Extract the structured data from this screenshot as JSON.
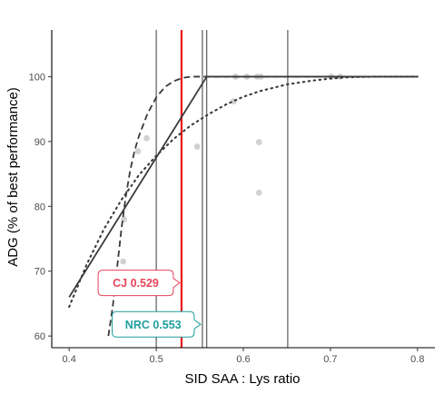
{
  "chart_data": {
    "type": "scatter",
    "xlabel": "SID SAA : Lys ratio",
    "ylabel": "ADG (% of best performance)",
    "xlim": [
      0.38,
      0.82
    ],
    "ylim": [
      58.2,
      107.2
    ],
    "x_ticks": [
      0.4,
      0.5,
      0.6,
      0.7,
      0.8
    ],
    "y_ticks": [
      60,
      70,
      80,
      90,
      100
    ],
    "grid": false,
    "points": [
      {
        "x": 0.462,
        "y": 71.5
      },
      {
        "x": 0.463,
        "y": 78
      },
      {
        "x": 0.479,
        "y": 88.5
      },
      {
        "x": 0.489,
        "y": 90.5
      },
      {
        "x": 0.547,
        "y": 89.2
      },
      {
        "x": 0.589,
        "y": 96.2
      },
      {
        "x": 0.591,
        "y": 100
      },
      {
        "x": 0.604,
        "y": 100
      },
      {
        "x": 0.616,
        "y": 100
      },
      {
        "x": 0.62,
        "y": 100
      },
      {
        "x": 0.618,
        "y": 89.9
      },
      {
        "x": 0.618,
        "y": 82.1
      },
      {
        "x": 0.701,
        "y": 100
      },
      {
        "x": 0.711,
        "y": 100
      }
    ],
    "models": [
      {
        "style": "solid",
        "color": "#3a3a3a",
        "x": [
          0.4,
          0.558,
          0.8
        ],
        "y": [
          66,
          100,
          100
        ]
      },
      {
        "style": "dashed",
        "color": "#3a3a3a",
        "x": [
          0.445,
          0.45,
          0.455,
          0.46,
          0.465,
          0.47,
          0.475,
          0.48,
          0.49,
          0.5,
          0.51,
          0.52,
          0.53,
          0.54,
          0.55,
          0.56,
          0.6,
          0.7,
          0.8
        ],
        "y": [
          60,
          64.5,
          70.5,
          76.5,
          81.5,
          85.5,
          88.5,
          90.8,
          94.3,
          96.8,
          98.4,
          99.3,
          99.8,
          100,
          100,
          100,
          100,
          100,
          100
        ]
      },
      {
        "style": "dotted",
        "color": "#3a3a3a",
        "x": [
          0.4,
          0.42,
          0.44,
          0.46,
          0.48,
          0.5,
          0.52,
          0.54,
          0.56,
          0.58,
          0.6,
          0.62,
          0.65,
          0.68,
          0.7,
          0.72,
          0.75,
          0.8
        ],
        "y": [
          64.5,
          71,
          76.5,
          81,
          84.8,
          87.8,
          90.4,
          92.5,
          94.2,
          95.7,
          96.9,
          97.8,
          98.8,
          99.4,
          99.7,
          99.9,
          100,
          100
        ]
      }
    ],
    "vlines": [
      {
        "x": 0.5,
        "color": "#3a3a3a"
      },
      {
        "x": 0.529,
        "color": "#e8191e"
      },
      {
        "x": 0.553,
        "color": "#3a3a3a"
      },
      {
        "x": 0.558,
        "color": "#3a3a3a"
      },
      {
        "x": 0.651,
        "color": "#3a3a3a"
      }
    ],
    "annotations": [
      {
        "label": "CJ 0.529",
        "x": 0.529,
        "y": 68.2,
        "color": "#e8445a"
      },
      {
        "label": "NRC 0.553",
        "x": 0.553,
        "y": 61.8,
        "color": "#1f9e9e"
      }
    ]
  }
}
